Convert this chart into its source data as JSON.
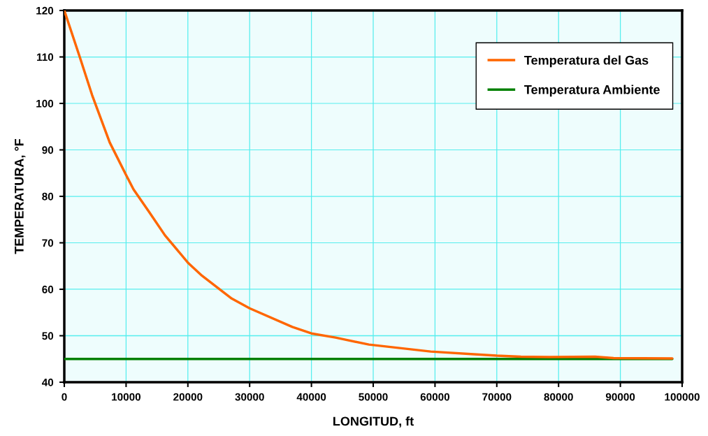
{
  "chart_data": {
    "type": "line",
    "xlabel": "LONGITUD, ft",
    "ylabel": "TEMPERATURA, °F",
    "xlim": [
      0,
      100000
    ],
    "xticks": [
      0,
      10000,
      20000,
      30000,
      40000,
      50000,
      60000,
      70000,
      80000,
      90000,
      100000
    ],
    "ylim": [
      40,
      120
    ],
    "yticks": [
      40,
      50,
      60,
      70,
      80,
      90,
      100,
      110,
      120
    ],
    "grid": true,
    "legend": "top right",
    "marker": "none",
    "line_style": "solid",
    "series": [
      {
        "name": "Temperatura del Gas",
        "color": "#ff6600",
        "x": [
          0,
          2500,
          4500,
          7350,
          10000,
          11200,
          13800,
          16300,
          20100,
          22300,
          27100,
          30000,
          36900,
          40000,
          43900,
          49300,
          59300,
          70000,
          73900,
          78500,
          85900,
          88900,
          98400
        ],
        "values": [
          120,
          110,
          101.8,
          91.6,
          84.6,
          81.5,
          76.5,
          71.6,
          65.6,
          62.9,
          58.0,
          55.9,
          51.9,
          50.5,
          49.6,
          48.1,
          46.6,
          45.7,
          45.5,
          45.4,
          45.5,
          45.2,
          45.1
        ]
      },
      {
        "name": "Temperatura Ambiente",
        "color": "#008000",
        "x": [
          0,
          98400
        ],
        "values": [
          45,
          45
        ]
      }
    ]
  }
}
